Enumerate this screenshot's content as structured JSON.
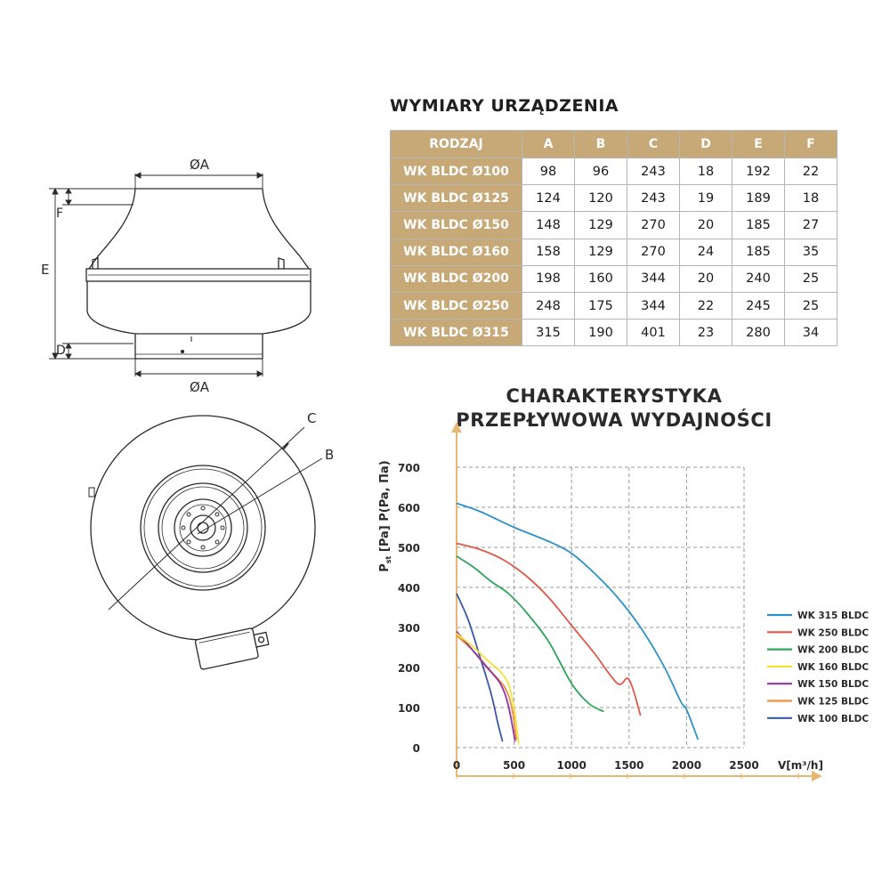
{
  "dims_table": {
    "title": "WYMIARY URZĄDZENIA",
    "headers": [
      "RODZAJ",
      "A",
      "B",
      "C",
      "D",
      "E",
      "F"
    ],
    "rows": [
      {
        "model": "WK BLDC Ø100",
        "values": [
          "98",
          "96",
          "243",
          "18",
          "192",
          "22"
        ]
      },
      {
        "model": "WK BLDC Ø125",
        "values": [
          "124",
          "120",
          "243",
          "19",
          "189",
          "18"
        ]
      },
      {
        "model": "WK BLDC Ø150",
        "values": [
          "148",
          "129",
          "270",
          "20",
          "185",
          "27"
        ]
      },
      {
        "model": "WK BLDC Ø160",
        "values": [
          "158",
          "129",
          "270",
          "24",
          "185",
          "35"
        ]
      },
      {
        "model": "WK BLDC Ø200",
        "values": [
          "198",
          "160",
          "344",
          "20",
          "240",
          "25"
        ]
      },
      {
        "model": "WK BLDC Ø250",
        "values": [
          "248",
          "175",
          "344",
          "22",
          "245",
          "25"
        ]
      },
      {
        "model": "WK BLDC Ø315",
        "values": [
          "315",
          "190",
          "401",
          "23",
          "280",
          "34"
        ]
      }
    ]
  },
  "drawing": {
    "label_a_top": "ØA",
    "label_a_bottom": "ØA",
    "label_e": "E",
    "label_f": "F",
    "label_d": "D",
    "label_c": "C",
    "label_b": "B"
  },
  "colors": {
    "table_header_bg": "#c7a877",
    "axis_arrow": "#e8b774"
  },
  "chart_data": {
    "type": "line",
    "title": [
      "CHARAKTERYSTYKA",
      "PRZEPŁYWOWA WYDAJNOŚCI"
    ],
    "ylabel_main": "P",
    "ylabel_sub": "st",
    "ylabel_rest": " [Pa] P(Pa, Па)",
    "xlabel": "V[m³/h]",
    "x_ticks": [
      0,
      500,
      1000,
      1500,
      2000,
      2500
    ],
    "y_ticks": [
      0,
      100,
      200,
      300,
      400,
      500,
      600,
      700
    ],
    "xlim": [
      0,
      2500
    ],
    "ylim": [
      0,
      700
    ],
    "grid": true,
    "legend_position": "right",
    "series": [
      {
        "name": "WK 315 BLDC",
        "color": "#2e92c9",
        "points": [
          [
            0,
            610
          ],
          [
            200,
            590
          ],
          [
            500,
            550
          ],
          [
            800,
            515
          ],
          [
            1000,
            485
          ],
          [
            1200,
            435
          ],
          [
            1400,
            375
          ],
          [
            1600,
            300
          ],
          [
            1800,
            205
          ],
          [
            1950,
            115
          ],
          [
            2000,
            95
          ],
          [
            2100,
            20
          ]
        ]
      },
      {
        "name": "WK 250 BLDC",
        "color": "#e0574b",
        "points": [
          [
            0,
            510
          ],
          [
            200,
            495
          ],
          [
            400,
            470
          ],
          [
            600,
            430
          ],
          [
            800,
            375
          ],
          [
            1000,
            305
          ],
          [
            1200,
            235
          ],
          [
            1400,
            160
          ],
          [
            1500,
            170
          ],
          [
            1600,
            80
          ]
        ]
      },
      {
        "name": "WK 200 BLDC",
        "color": "#2fa45a",
        "points": [
          [
            0,
            478
          ],
          [
            150,
            450
          ],
          [
            300,
            415
          ],
          [
            450,
            385
          ],
          [
            600,
            340
          ],
          [
            800,
            265
          ],
          [
            1000,
            160
          ],
          [
            1150,
            110
          ],
          [
            1280,
            90
          ]
        ]
      },
      {
        "name": "WK 160 BLDC",
        "color": "#f2e233",
        "points": [
          [
            0,
            285
          ],
          [
            150,
            250
          ],
          [
            300,
            210
          ],
          [
            380,
            190
          ],
          [
            450,
            160
          ],
          [
            500,
            100
          ],
          [
            540,
            10
          ]
        ]
      },
      {
        "name": "WK 150 BLDC",
        "color": "#8e35a8",
        "points": [
          [
            0,
            290
          ],
          [
            120,
            250
          ],
          [
            250,
            205
          ],
          [
            380,
            160
          ],
          [
            450,
            105
          ],
          [
            510,
            15
          ]
        ]
      },
      {
        "name": "WK 125 BLDC",
        "color": "#f0913a",
        "points": [
          [
            0,
            280
          ],
          [
            150,
            240
          ],
          [
            300,
            190
          ],
          [
            420,
            150
          ],
          [
            480,
            100
          ],
          [
            520,
            20
          ]
        ]
      },
      {
        "name": "WK 100 BLDC",
        "color": "#3a5aa5",
        "points": [
          [
            0,
            385
          ],
          [
            100,
            320
          ],
          [
            200,
            230
          ],
          [
            300,
            135
          ],
          [
            360,
            60
          ],
          [
            400,
            15
          ]
        ]
      }
    ]
  }
}
